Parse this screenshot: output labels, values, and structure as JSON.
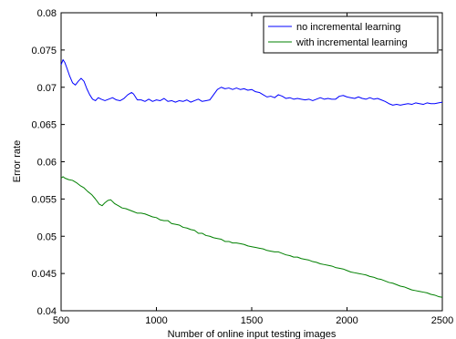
{
  "chart_data": {
    "type": "line",
    "xlabel": "Number of online input testing images",
    "ylabel": "Error rate",
    "xlim": [
      500,
      2500
    ],
    "ylim": [
      0.04,
      0.08
    ],
    "x_ticks": [
      500,
      1000,
      1500,
      2000,
      2500
    ],
    "x_tick_labels": [
      "500",
      "1000",
      "1500",
      "2000",
      "2500"
    ],
    "y_ticks": [
      0.04,
      0.045,
      0.05,
      0.055,
      0.06,
      0.065,
      0.07,
      0.075,
      0.08
    ],
    "y_tick_labels": [
      "0.04",
      "0.045",
      "0.05",
      "0.055",
      "0.06",
      "0.065",
      "0.07",
      "0.075",
      "0.08"
    ],
    "grid": false,
    "legend_position": "top-right",
    "series": [
      {
        "name": "no incremental learning",
        "color": "#0000ff",
        "points": [
          [
            500,
            0.073
          ],
          [
            510,
            0.0737
          ],
          [
            520,
            0.0733
          ],
          [
            530,
            0.0726
          ],
          [
            545,
            0.0715
          ],
          [
            560,
            0.0706
          ],
          [
            575,
            0.0703
          ],
          [
            590,
            0.0708
          ],
          [
            605,
            0.0712
          ],
          [
            620,
            0.0708
          ],
          [
            635,
            0.0698
          ],
          [
            650,
            0.069
          ],
          [
            665,
            0.0684
          ],
          [
            680,
            0.0682
          ],
          [
            695,
            0.0686
          ],
          [
            710,
            0.0684
          ],
          [
            730,
            0.0682
          ],
          [
            750,
            0.0684
          ],
          [
            770,
            0.0686
          ],
          [
            790,
            0.0683
          ],
          [
            810,
            0.0682
          ],
          [
            830,
            0.0685
          ],
          [
            850,
            0.069
          ],
          [
            870,
            0.0693
          ],
          [
            880,
            0.0691
          ],
          [
            900,
            0.0683
          ],
          [
            920,
            0.0683
          ],
          [
            940,
            0.0681
          ],
          [
            960,
            0.0684
          ],
          [
            980,
            0.0681
          ],
          [
            1000,
            0.0683
          ],
          [
            1020,
            0.0682
          ],
          [
            1040,
            0.0685
          ],
          [
            1060,
            0.0681
          ],
          [
            1080,
            0.0682
          ],
          [
            1100,
            0.068
          ],
          [
            1120,
            0.0682
          ],
          [
            1140,
            0.0681
          ],
          [
            1160,
            0.0683
          ],
          [
            1180,
            0.068
          ],
          [
            1200,
            0.0682
          ],
          [
            1220,
            0.0684
          ],
          [
            1240,
            0.0681
          ],
          [
            1260,
            0.0682
          ],
          [
            1280,
            0.0683
          ],
          [
            1300,
            0.069
          ],
          [
            1320,
            0.0697
          ],
          [
            1340,
            0.07
          ],
          [
            1360,
            0.0698
          ],
          [
            1380,
            0.0699
          ],
          [
            1400,
            0.0697
          ],
          [
            1420,
            0.0699
          ],
          [
            1440,
            0.0697
          ],
          [
            1460,
            0.0698
          ],
          [
            1480,
            0.0696
          ],
          [
            1500,
            0.0697
          ],
          [
            1520,
            0.0694
          ],
          [
            1540,
            0.0693
          ],
          [
            1560,
            0.069
          ],
          [
            1580,
            0.0687
          ],
          [
            1600,
            0.0688
          ],
          [
            1620,
            0.0686
          ],
          [
            1640,
            0.069
          ],
          [
            1660,
            0.0688
          ],
          [
            1680,
            0.0685
          ],
          [
            1700,
            0.0686
          ],
          [
            1720,
            0.0684
          ],
          [
            1740,
            0.0685
          ],
          [
            1760,
            0.0684
          ],
          [
            1780,
            0.0683
          ],
          [
            1800,
            0.0684
          ],
          [
            1820,
            0.0682
          ],
          [
            1840,
            0.0684
          ],
          [
            1860,
            0.0686
          ],
          [
            1880,
            0.0684
          ],
          [
            1900,
            0.0685
          ],
          [
            1920,
            0.0684
          ],
          [
            1940,
            0.0684
          ],
          [
            1960,
            0.0688
          ],
          [
            1980,
            0.0689
          ],
          [
            2000,
            0.0687
          ],
          [
            2020,
            0.0686
          ],
          [
            2040,
            0.0685
          ],
          [
            2060,
            0.0687
          ],
          [
            2080,
            0.0685
          ],
          [
            2100,
            0.0684
          ],
          [
            2120,
            0.0686
          ],
          [
            2140,
            0.0684
          ],
          [
            2160,
            0.0685
          ],
          [
            2180,
            0.0683
          ],
          [
            2200,
            0.0681
          ],
          [
            2220,
            0.0678
          ],
          [
            2240,
            0.0676
          ],
          [
            2260,
            0.0677
          ],
          [
            2280,
            0.0676
          ],
          [
            2300,
            0.0677
          ],
          [
            2320,
            0.0678
          ],
          [
            2340,
            0.0677
          ],
          [
            2360,
            0.0679
          ],
          [
            2380,
            0.0678
          ],
          [
            2400,
            0.0677
          ],
          [
            2420,
            0.0679
          ],
          [
            2440,
            0.0678
          ],
          [
            2460,
            0.0678
          ],
          [
            2480,
            0.0679
          ],
          [
            2500,
            0.068
          ]
        ]
      },
      {
        "name": "with incremental learning",
        "color": "#008000",
        "points": [
          [
            500,
            0.0578
          ],
          [
            510,
            0.058
          ],
          [
            520,
            0.0578
          ],
          [
            540,
            0.0576
          ],
          [
            560,
            0.0575
          ],
          [
            580,
            0.0572
          ],
          [
            600,
            0.0568
          ],
          [
            620,
            0.0565
          ],
          [
            640,
            0.056
          ],
          [
            660,
            0.0556
          ],
          [
            680,
            0.055
          ],
          [
            700,
            0.0543
          ],
          [
            715,
            0.0541
          ],
          [
            730,
            0.0545
          ],
          [
            745,
            0.0548
          ],
          [
            760,
            0.0549
          ],
          [
            780,
            0.0544
          ],
          [
            800,
            0.0541
          ],
          [
            820,
            0.0538
          ],
          [
            840,
            0.0537
          ],
          [
            860,
            0.0535
          ],
          [
            880,
            0.0533
          ],
          [
            900,
            0.0531
          ],
          [
            920,
            0.0531
          ],
          [
            940,
            0.053
          ],
          [
            960,
            0.0528
          ],
          [
            980,
            0.0526
          ],
          [
            1000,
            0.0525
          ],
          [
            1020,
            0.0522
          ],
          [
            1040,
            0.0521
          ],
          [
            1060,
            0.0521
          ],
          [
            1080,
            0.0517
          ],
          [
            1100,
            0.0516
          ],
          [
            1120,
            0.0515
          ],
          [
            1140,
            0.0512
          ],
          [
            1160,
            0.0511
          ],
          [
            1180,
            0.0509
          ],
          [
            1200,
            0.0508
          ],
          [
            1220,
            0.0504
          ],
          [
            1240,
            0.0504
          ],
          [
            1260,
            0.0501
          ],
          [
            1280,
            0.05
          ],
          [
            1300,
            0.0498
          ],
          [
            1320,
            0.0497
          ],
          [
            1340,
            0.0496
          ],
          [
            1360,
            0.0493
          ],
          [
            1380,
            0.0493
          ],
          [
            1400,
            0.0491
          ],
          [
            1420,
            0.0491
          ],
          [
            1440,
            0.049
          ],
          [
            1460,
            0.0489
          ],
          [
            1480,
            0.0487
          ],
          [
            1500,
            0.0486
          ],
          [
            1520,
            0.0485
          ],
          [
            1540,
            0.0484
          ],
          [
            1560,
            0.0483
          ],
          [
            1580,
            0.0481
          ],
          [
            1600,
            0.048
          ],
          [
            1620,
            0.0479
          ],
          [
            1640,
            0.0479
          ],
          [
            1660,
            0.0477
          ],
          [
            1680,
            0.0475
          ],
          [
            1700,
            0.0474
          ],
          [
            1720,
            0.0472
          ],
          [
            1740,
            0.0472
          ],
          [
            1760,
            0.047
          ],
          [
            1780,
            0.0469
          ],
          [
            1800,
            0.0468
          ],
          [
            1820,
            0.0466
          ],
          [
            1840,
            0.0465
          ],
          [
            1860,
            0.0463
          ],
          [
            1880,
            0.0462
          ],
          [
            1900,
            0.0461
          ],
          [
            1920,
            0.046
          ],
          [
            1940,
            0.0458
          ],
          [
            1960,
            0.0457
          ],
          [
            1980,
            0.0456
          ],
          [
            2000,
            0.0454
          ],
          [
            2020,
            0.0452
          ],
          [
            2040,
            0.0451
          ],
          [
            2060,
            0.045
          ],
          [
            2080,
            0.0449
          ],
          [
            2100,
            0.0448
          ],
          [
            2120,
            0.0446
          ],
          [
            2140,
            0.0445
          ],
          [
            2160,
            0.0443
          ],
          [
            2180,
            0.0442
          ],
          [
            2200,
            0.044
          ],
          [
            2220,
            0.0438
          ],
          [
            2240,
            0.0437
          ],
          [
            2260,
            0.0435
          ],
          [
            2280,
            0.0433
          ],
          [
            2300,
            0.0432
          ],
          [
            2320,
            0.043
          ],
          [
            2340,
            0.0428
          ],
          [
            2360,
            0.0427
          ],
          [
            2380,
            0.0426
          ],
          [
            2400,
            0.0425
          ],
          [
            2420,
            0.0424
          ],
          [
            2440,
            0.0422
          ],
          [
            2460,
            0.0421
          ],
          [
            2480,
            0.0419
          ],
          [
            2500,
            0.0418
          ]
        ]
      }
    ]
  }
}
